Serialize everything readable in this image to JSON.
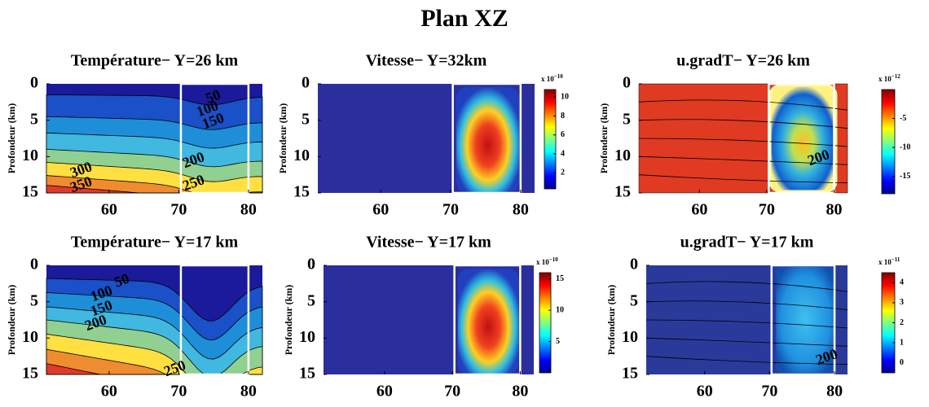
{
  "title": "Plan XZ",
  "chart_data": [
    {
      "type": "contour",
      "title": "Température− Y=26 km",
      "ylabel": "Profondeur (km)",
      "xlim": [
        51,
        82
      ],
      "xticks": [
        60,
        70,
        80
      ],
      "ylim": [
        15,
        0
      ],
      "yticks": [
        0,
        5,
        10,
        15
      ],
      "contour_labels": [
        50,
        100,
        150,
        200,
        250,
        300,
        350
      ]
    },
    {
      "type": "contour",
      "title": "Vitesse− Y=32km",
      "ylabel": "Profondeur (km)",
      "xlim": [
        51,
        82
      ],
      "xticks": [
        60,
        70,
        80
      ],
      "ylim": [
        15,
        0
      ],
      "yticks": [
        0,
        5,
        10,
        15
      ],
      "clim": [
        0.3,
        10.8
      ],
      "cticks": [
        2,
        4,
        6,
        8,
        10
      ],
      "cscale": "x 10",
      "cexponent": "−10"
    },
    {
      "type": "contour",
      "title": "u.gradT− Y=26 km",
      "ylabel": "Profondeur (km)",
      "xlim": [
        51,
        82
      ],
      "xticks": [
        60,
        70,
        80
      ],
      "ylim": [
        15,
        0
      ],
      "yticks": [
        0,
        5,
        10,
        15
      ],
      "contour_labels": [
        200
      ],
      "clim": [
        -18,
        0
      ],
      "cticks": [
        -5,
        -10,
        -15
      ],
      "cscale": "x 10",
      "cexponent": "−12"
    },
    {
      "type": "contour",
      "title": "Température− Y=17 km",
      "ylabel": "Profondeur (km)",
      "xlim": [
        51,
        82
      ],
      "xticks": [
        60,
        70,
        80
      ],
      "ylim": [
        15,
        0
      ],
      "yticks": [
        0,
        5,
        10,
        15
      ],
      "contour_labels": [
        50,
        100,
        150,
        200,
        250
      ]
    },
    {
      "type": "contour",
      "title": "Vitesse− Y=17 km",
      "ylabel": "Profondeur (km)",
      "xlim": [
        51,
        82
      ],
      "xticks": [
        60,
        70,
        80
      ],
      "ylim": [
        15,
        0
      ],
      "yticks": [
        0,
        5,
        10,
        15
      ],
      "clim": [
        0,
        16
      ],
      "cticks": [
        5,
        10,
        15
      ],
      "cscale": "x 10",
      "cexponent": "−10"
    },
    {
      "type": "contour",
      "title": "u.gradT− Y=17 km",
      "ylabel": "Profondeur (km)",
      "xlim": [
        51,
        82
      ],
      "xticks": [
        60,
        70,
        80
      ],
      "ylim": [
        15,
        0
      ],
      "yticks": [
        0,
        5,
        10,
        15
      ],
      "contour_labels": [
        200
      ],
      "clim": [
        -0.5,
        4.5
      ],
      "cticks": [
        0,
        1,
        2,
        3,
        4
      ],
      "cscale": "x 10",
      "cexponent": "−11"
    }
  ]
}
